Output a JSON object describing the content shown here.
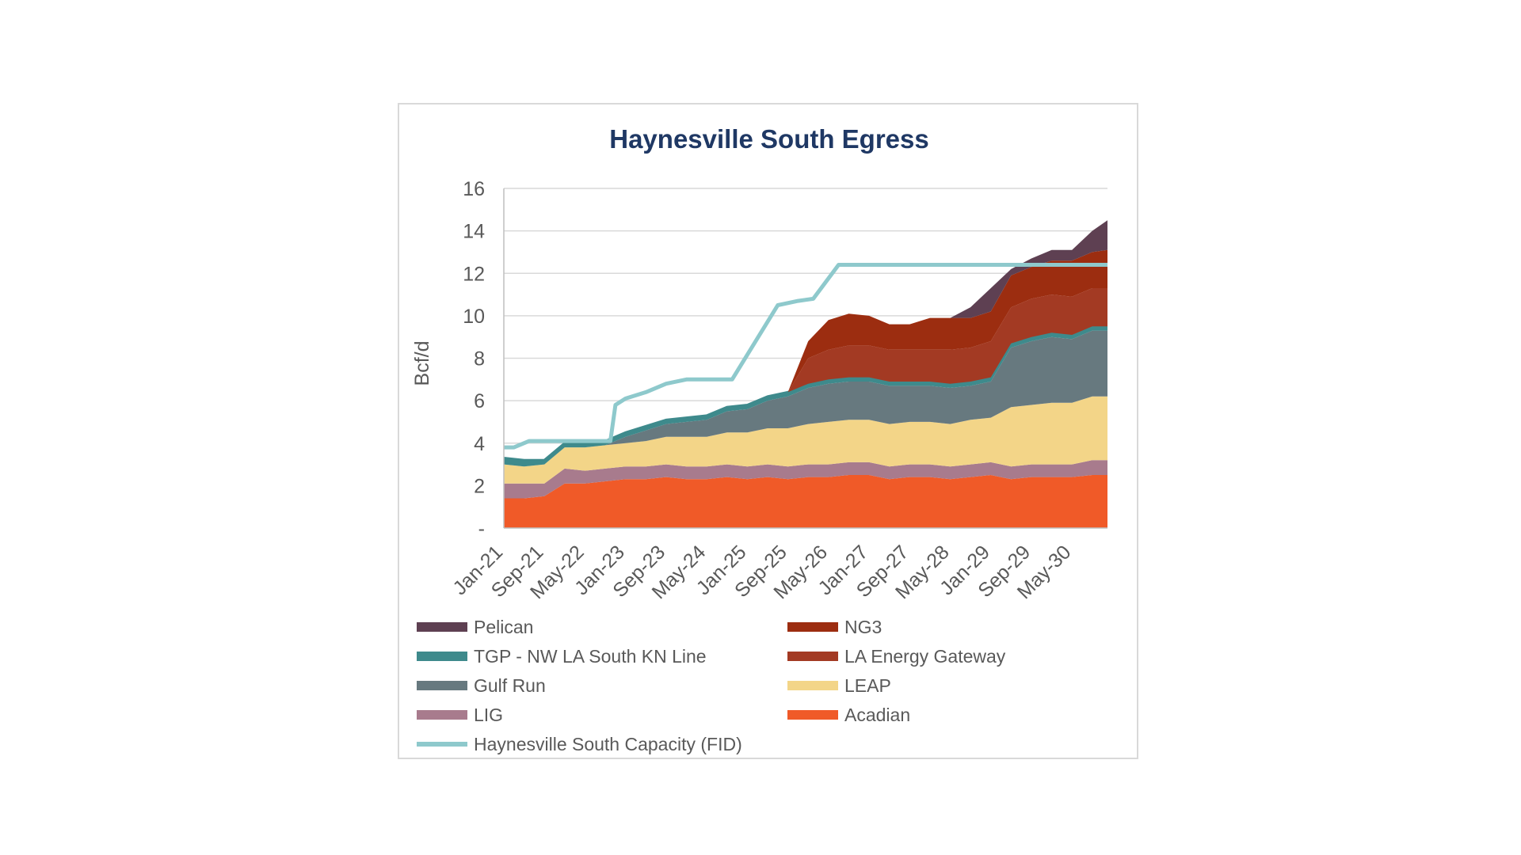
{
  "chart_data": {
    "type": "area",
    "title": "Haynesville South Egress",
    "ylabel": "Bcf/d",
    "xlabel": "",
    "ylim": [
      0,
      16
    ],
    "yticks": [
      0,
      2,
      4,
      6,
      8,
      10,
      12,
      14,
      16
    ],
    "ytick_labels": [
      "-",
      "2",
      "4",
      "6",
      "8",
      "10",
      "12",
      "14",
      "16"
    ],
    "grid": true,
    "legend_position": "bottom",
    "x": [
      "Jan-21",
      "May-21",
      "Sep-21",
      "Jan-22",
      "May-22",
      "Sep-22",
      "Jan-23",
      "May-23",
      "Sep-23",
      "Jan-24",
      "May-24",
      "Sep-24",
      "Jan-25",
      "May-25",
      "Sep-25",
      "Jan-26",
      "May-26",
      "Sep-26",
      "Jan-27",
      "May-27",
      "Sep-27",
      "Jan-28",
      "May-28",
      "Sep-28",
      "Jan-29",
      "May-29",
      "Sep-29",
      "Jan-30",
      "May-30",
      "Sep-30",
      "Dec-30"
    ],
    "x_tick_labels": [
      "Jan-21",
      "Sep-21",
      "May-22",
      "Jan-23",
      "Sep-23",
      "May-24",
      "Jan-25",
      "Sep-25",
      "May-26",
      "Jan-27",
      "Sep-27",
      "May-28",
      "Jan-29",
      "Sep-29",
      "May-30"
    ],
    "series": [
      {
        "name": "Acadian",
        "color": "#f05a28",
        "values": [
          1.4,
          1.4,
          1.5,
          2.1,
          2.1,
          2.2,
          2.3,
          2.3,
          2.4,
          2.3,
          2.3,
          2.4,
          2.3,
          2.4,
          2.3,
          2.4,
          2.4,
          2.5,
          2.5,
          2.3,
          2.4,
          2.4,
          2.3,
          2.4,
          2.5,
          2.3,
          2.4,
          2.4,
          2.4,
          2.5,
          2.5
        ]
      },
      {
        "name": "LIG",
        "color": "#a87b8d",
        "values": [
          0.7,
          0.7,
          0.6,
          0.7,
          0.6,
          0.6,
          0.6,
          0.6,
          0.6,
          0.6,
          0.6,
          0.6,
          0.6,
          0.6,
          0.6,
          0.6,
          0.6,
          0.6,
          0.6,
          0.6,
          0.6,
          0.6,
          0.6,
          0.6,
          0.6,
          0.6,
          0.6,
          0.6,
          0.6,
          0.7,
          0.7
        ]
      },
      {
        "name": "LEAP",
        "color": "#f3d588",
        "values": [
          0.9,
          0.8,
          0.9,
          1.0,
          1.1,
          1.1,
          1.1,
          1.2,
          1.3,
          1.4,
          1.4,
          1.5,
          1.6,
          1.7,
          1.8,
          1.9,
          2.0,
          2.0,
          2.0,
          2.0,
          2.0,
          2.0,
          2.0,
          2.1,
          2.1,
          2.8,
          2.8,
          2.9,
          2.9,
          3.0,
          3.0
        ]
      },
      {
        "name": "Gulf Run",
        "color": "#67797f",
        "values": [
          0,
          0,
          0,
          0,
          0,
          0,
          0.3,
          0.5,
          0.6,
          0.7,
          0.8,
          1.0,
          1.1,
          1.3,
          1.5,
          1.7,
          1.8,
          1.8,
          1.8,
          1.8,
          1.7,
          1.7,
          1.7,
          1.6,
          1.7,
          2.8,
          3.0,
          3.1,
          3.0,
          3.1,
          3.1
        ]
      },
      {
        "name": "TGP - NW LA South KN Line",
        "color": "#3e8a8c",
        "values": [
          0.3,
          0.3,
          0.2,
          0.2,
          0.2,
          0.2,
          0.2,
          0.2,
          0.2,
          0.2,
          0.2,
          0.2,
          0.2,
          0.2,
          0.2,
          0.2,
          0.2,
          0.2,
          0.2,
          0.2,
          0.2,
          0.2,
          0.2,
          0.2,
          0.2,
          0.2,
          0.2,
          0.2,
          0.2,
          0.2,
          0.2
        ]
      },
      {
        "name": "LA Energy Gateway",
        "color": "#a33a23",
        "values": [
          0,
          0,
          0,
          0,
          0,
          0,
          0,
          0,
          0,
          0,
          0,
          0,
          0,
          0,
          0,
          1.2,
          1.4,
          1.5,
          1.5,
          1.5,
          1.5,
          1.5,
          1.6,
          1.6,
          1.7,
          1.7,
          1.8,
          1.8,
          1.8,
          1.8,
          1.8
        ]
      },
      {
        "name": "NG3",
        "color": "#9c2d10",
        "values": [
          0,
          0,
          0,
          0,
          0,
          0,
          0,
          0,
          0,
          0,
          0,
          0,
          0,
          0,
          0,
          0.8,
          1.4,
          1.5,
          1.4,
          1.2,
          1.2,
          1.5,
          1.5,
          1.4,
          1.4,
          1.5,
          1.5,
          1.6,
          1.7,
          1.7,
          1.8
        ]
      },
      {
        "name": "Pelican",
        "color": "#5e4052",
        "values": [
          0,
          0,
          0,
          0,
          0,
          0,
          0,
          0,
          0,
          0,
          0,
          0,
          0,
          0,
          0,
          0,
          0,
          0,
          0,
          0,
          0,
          0,
          0,
          0.5,
          1.1,
          0.3,
          0.4,
          0.5,
          0.5,
          1.0,
          1.4
        ]
      },
      {
        "name": "Haynesville South Capacity (FID)",
        "color": "#8ec9cc",
        "type": "step-line",
        "points": [
          [
            "Jan-21",
            3.8
          ],
          [
            "Mar-21",
            3.8
          ],
          [
            "Jun-21",
            4.1
          ],
          [
            "Oct-22",
            4.1
          ],
          [
            "Nov-22",
            5.8
          ],
          [
            "Jan-23",
            6.1
          ],
          [
            "May-23",
            6.4
          ],
          [
            "Sep-23",
            6.8
          ],
          [
            "Jan-24",
            7.0
          ],
          [
            "Oct-24",
            7.0
          ],
          [
            "Jul-25",
            10.5
          ],
          [
            "Nov-25",
            10.7
          ],
          [
            "Feb-26",
            10.8
          ],
          [
            "Jul-26",
            12.4
          ],
          [
            "Dec-30",
            12.4
          ]
        ]
      }
    ],
    "legend": [
      {
        "label": "Pelican",
        "color": "#5e4052"
      },
      {
        "label": "NG3",
        "color": "#9c2d10"
      },
      {
        "label": "TGP - NW LA South KN Line",
        "color": "#3e8a8c"
      },
      {
        "label": "LA Energy Gateway",
        "color": "#a33a23"
      },
      {
        "label": "Gulf Run",
        "color": "#67797f"
      },
      {
        "label": "LEAP",
        "color": "#f3d588"
      },
      {
        "label": "LIG",
        "color": "#a87b8d"
      },
      {
        "label": "Acadian",
        "color": "#f05a28"
      },
      {
        "label": "Haynesville South Capacity (FID)",
        "color": "#8ec9cc"
      }
    ]
  }
}
